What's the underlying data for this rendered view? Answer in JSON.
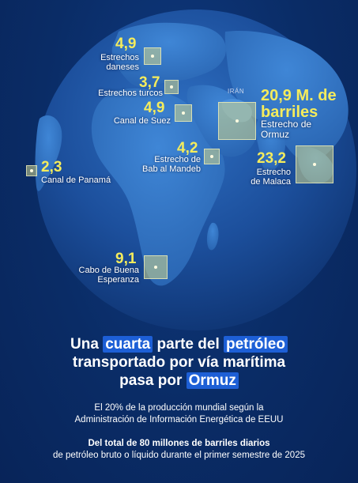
{
  "map": {
    "country_label": "IRÁN",
    "chokepoints": [
      {
        "id": "daneses",
        "value": "4,9",
        "name_line1": "Estrechos",
        "name_line2": "daneses"
      },
      {
        "id": "turcos",
        "value": "3,7",
        "name_line1": "Estrechos turcos",
        "name_line2": ""
      },
      {
        "id": "suez",
        "value": "4,9",
        "name_line1": "Canal de Suez",
        "name_line2": ""
      },
      {
        "id": "ormuz",
        "value_line1": "20,9 M. de",
        "value_line2": "barriles",
        "name_line1": "Estrecho de",
        "name_line2": "Ormuz"
      },
      {
        "id": "mandeb",
        "value": "4,2",
        "name_line1": "Estrecho de",
        "name_line2": "Bab al Mandeb"
      },
      {
        "id": "malaca",
        "value": "23,2",
        "name_line1": "Estrecho",
        "name_line2": "de Malaca"
      },
      {
        "id": "panama",
        "value": "2,3",
        "name_line1": "Canal de Panamá",
        "name_line2": ""
      },
      {
        "id": "cabo",
        "value": "9,1",
        "name_line1": "Cabo de Buena",
        "name_line2": "Esperanza"
      }
    ]
  },
  "headline": {
    "line1_a": "Una ",
    "line1_hl1": "cuarta",
    "line1_b": " parte del ",
    "line1_hl2": "petróleo",
    "line2": "transportado por vía marítima",
    "line3_a": "pasa por ",
    "line3_hl": "Ormuz"
  },
  "source_note": {
    "line1": "El 20% de la producción mundial según la",
    "line2": "Administración de Información Energética de EEUU"
  },
  "total_note": {
    "line1_bold": "Del total de 80 millones de barriles diarios",
    "line2": "de petróleo bruto o líquido durante el primer semestre de 2025"
  },
  "colors": {
    "background": "#0a2c66",
    "value_yellow": "#f5ec5c",
    "highlight_blue": "#1d5fd6",
    "marker_fill": "#d2d78c"
  }
}
